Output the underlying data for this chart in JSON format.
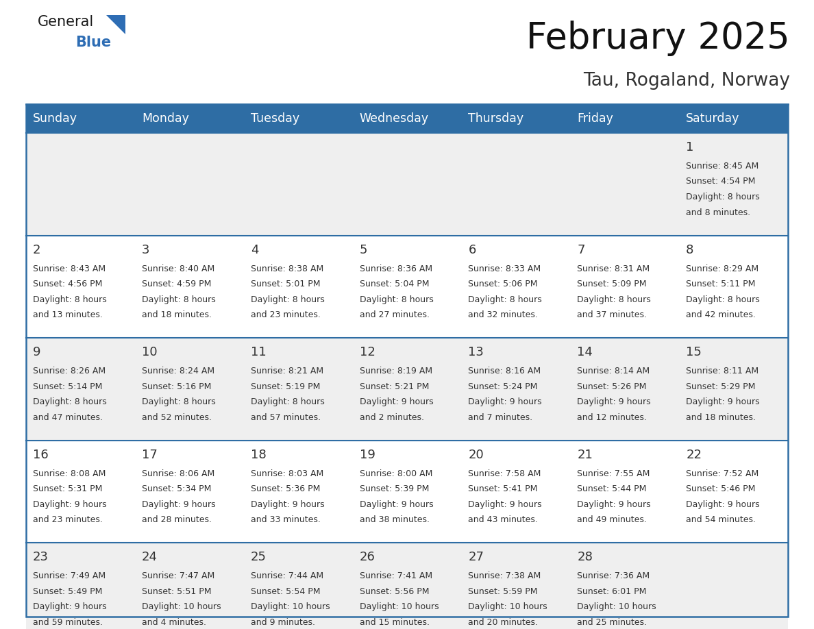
{
  "title": "February 2025",
  "subtitle": "Tau, Rogaland, Norway",
  "header_bg": "#2E6DA4",
  "header_text": "#FFFFFF",
  "cell_bg_gray": "#EFEFEF",
  "cell_bg_white": "#FFFFFF",
  "day_number_color": "#333333",
  "info_text_color": "#333333",
  "border_color": "#2E6DA4",
  "days_of_week": [
    "Sunday",
    "Monday",
    "Tuesday",
    "Wednesday",
    "Thursday",
    "Friday",
    "Saturday"
  ],
  "weeks": [
    [
      {
        "day": null,
        "info": ""
      },
      {
        "day": null,
        "info": ""
      },
      {
        "day": null,
        "info": ""
      },
      {
        "day": null,
        "info": ""
      },
      {
        "day": null,
        "info": ""
      },
      {
        "day": null,
        "info": ""
      },
      {
        "day": 1,
        "info": "Sunrise: 8:45 AM\nSunset: 4:54 PM\nDaylight: 8 hours\nand 8 minutes."
      }
    ],
    [
      {
        "day": 2,
        "info": "Sunrise: 8:43 AM\nSunset: 4:56 PM\nDaylight: 8 hours\nand 13 minutes."
      },
      {
        "day": 3,
        "info": "Sunrise: 8:40 AM\nSunset: 4:59 PM\nDaylight: 8 hours\nand 18 minutes."
      },
      {
        "day": 4,
        "info": "Sunrise: 8:38 AM\nSunset: 5:01 PM\nDaylight: 8 hours\nand 23 minutes."
      },
      {
        "day": 5,
        "info": "Sunrise: 8:36 AM\nSunset: 5:04 PM\nDaylight: 8 hours\nand 27 minutes."
      },
      {
        "day": 6,
        "info": "Sunrise: 8:33 AM\nSunset: 5:06 PM\nDaylight: 8 hours\nand 32 minutes."
      },
      {
        "day": 7,
        "info": "Sunrise: 8:31 AM\nSunset: 5:09 PM\nDaylight: 8 hours\nand 37 minutes."
      },
      {
        "day": 8,
        "info": "Sunrise: 8:29 AM\nSunset: 5:11 PM\nDaylight: 8 hours\nand 42 minutes."
      }
    ],
    [
      {
        "day": 9,
        "info": "Sunrise: 8:26 AM\nSunset: 5:14 PM\nDaylight: 8 hours\nand 47 minutes."
      },
      {
        "day": 10,
        "info": "Sunrise: 8:24 AM\nSunset: 5:16 PM\nDaylight: 8 hours\nand 52 minutes."
      },
      {
        "day": 11,
        "info": "Sunrise: 8:21 AM\nSunset: 5:19 PM\nDaylight: 8 hours\nand 57 minutes."
      },
      {
        "day": 12,
        "info": "Sunrise: 8:19 AM\nSunset: 5:21 PM\nDaylight: 9 hours\nand 2 minutes."
      },
      {
        "day": 13,
        "info": "Sunrise: 8:16 AM\nSunset: 5:24 PM\nDaylight: 9 hours\nand 7 minutes."
      },
      {
        "day": 14,
        "info": "Sunrise: 8:14 AM\nSunset: 5:26 PM\nDaylight: 9 hours\nand 12 minutes."
      },
      {
        "day": 15,
        "info": "Sunrise: 8:11 AM\nSunset: 5:29 PM\nDaylight: 9 hours\nand 18 minutes."
      }
    ],
    [
      {
        "day": 16,
        "info": "Sunrise: 8:08 AM\nSunset: 5:31 PM\nDaylight: 9 hours\nand 23 minutes."
      },
      {
        "day": 17,
        "info": "Sunrise: 8:06 AM\nSunset: 5:34 PM\nDaylight: 9 hours\nand 28 minutes."
      },
      {
        "day": 18,
        "info": "Sunrise: 8:03 AM\nSunset: 5:36 PM\nDaylight: 9 hours\nand 33 minutes."
      },
      {
        "day": 19,
        "info": "Sunrise: 8:00 AM\nSunset: 5:39 PM\nDaylight: 9 hours\nand 38 minutes."
      },
      {
        "day": 20,
        "info": "Sunrise: 7:58 AM\nSunset: 5:41 PM\nDaylight: 9 hours\nand 43 minutes."
      },
      {
        "day": 21,
        "info": "Sunrise: 7:55 AM\nSunset: 5:44 PM\nDaylight: 9 hours\nand 49 minutes."
      },
      {
        "day": 22,
        "info": "Sunrise: 7:52 AM\nSunset: 5:46 PM\nDaylight: 9 hours\nand 54 minutes."
      }
    ],
    [
      {
        "day": 23,
        "info": "Sunrise: 7:49 AM\nSunset: 5:49 PM\nDaylight: 9 hours\nand 59 minutes."
      },
      {
        "day": 24,
        "info": "Sunrise: 7:47 AM\nSunset: 5:51 PM\nDaylight: 10 hours\nand 4 minutes."
      },
      {
        "day": 25,
        "info": "Sunrise: 7:44 AM\nSunset: 5:54 PM\nDaylight: 10 hours\nand 9 minutes."
      },
      {
        "day": 26,
        "info": "Sunrise: 7:41 AM\nSunset: 5:56 PM\nDaylight: 10 hours\nand 15 minutes."
      },
      {
        "day": 27,
        "info": "Sunrise: 7:38 AM\nSunset: 5:59 PM\nDaylight: 10 hours\nand 20 minutes."
      },
      {
        "day": 28,
        "info": "Sunrise: 7:36 AM\nSunset: 6:01 PM\nDaylight: 10 hours\nand 25 minutes."
      },
      {
        "day": null,
        "info": ""
      }
    ]
  ],
  "fig_width": 11.88,
  "fig_height": 9.18,
  "dpi": 100
}
